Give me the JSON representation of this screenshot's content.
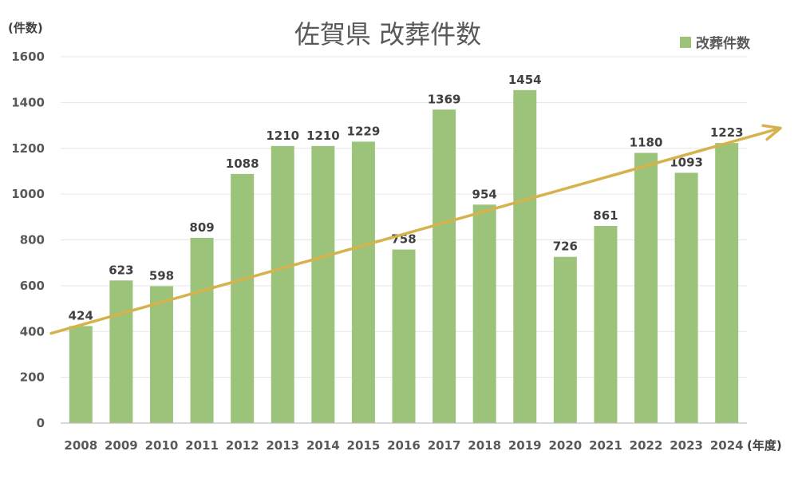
{
  "chart_data": {
    "type": "bar",
    "title": "佐賀県 改葬件数",
    "ylabel": "(件数)",
    "xlabel": "(年度)",
    "ylim": [
      0,
      1600
    ],
    "yticks": [
      0,
      200,
      400,
      600,
      800,
      1000,
      1200,
      1400,
      1600
    ],
    "grid": true,
    "legend": {
      "position": "top-right"
    },
    "categories": [
      "2008",
      "2009",
      "2010",
      "2011",
      "2012",
      "2013",
      "2014",
      "2015",
      "2016",
      "2017",
      "2018",
      "2019",
      "2020",
      "2021",
      "2022",
      "2023",
      "2024"
    ],
    "series": [
      {
        "name": "改葬件数",
        "color": "#9BC47A",
        "values": [
          424,
          623,
          598,
          809,
          1088,
          1210,
          1210,
          1229,
          758,
          1369,
          954,
          1454,
          726,
          861,
          1180,
          1093,
          1223
        ]
      }
    ],
    "trend_arrow": {
      "color": "#D6B24C",
      "start_value": 392,
      "end_value": 1288
    }
  }
}
